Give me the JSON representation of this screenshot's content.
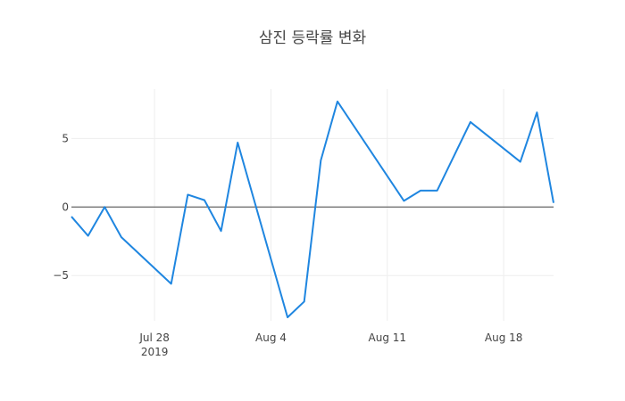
{
  "chart_data": {
    "type": "line",
    "title": "삼진 등락률 변화",
    "x": [
      "2019-07-23",
      "2019-07-24",
      "2019-07-25",
      "2019-07-26",
      "2019-07-29",
      "2019-07-30",
      "2019-07-31",
      "2019-08-01",
      "2019-08-02",
      "2019-08-05",
      "2019-08-06",
      "2019-08-07",
      "2019-08-08",
      "2019-08-12",
      "2019-08-13",
      "2019-08-14",
      "2019-08-16",
      "2019-08-19",
      "2019-08-20",
      "2019-08-21"
    ],
    "series": [
      {
        "color": "#1f86e0",
        "values": [
          -0.7,
          -2.1,
          0,
          -2.2,
          -5.6,
          0.9,
          0.5,
          -1.75,
          4.7,
          -8.05,
          -6.9,
          3.4,
          7.7,
          0.45,
          1.2,
          1.2,
          6.2,
          3.3,
          6.9,
          0.3
        ]
      }
    ],
    "xlim": [
      "2019-07-23",
      "2019-08-21"
    ],
    "xticks": [
      {
        "value": "2019-07-28",
        "label": "Jul 28\n2019"
      },
      {
        "value": "2019-08-04",
        "label": "Aug 4"
      },
      {
        "value": "2019-08-11",
        "label": "Aug 11"
      },
      {
        "value": "2019-08-18",
        "label": "Aug 18"
      }
    ],
    "ylim": [
      -8.3,
      8.6
    ],
    "yticks": [
      {
        "value": -5,
        "label": "−5"
      },
      0,
      5
    ],
    "grid": true,
    "zeroline": true
  }
}
